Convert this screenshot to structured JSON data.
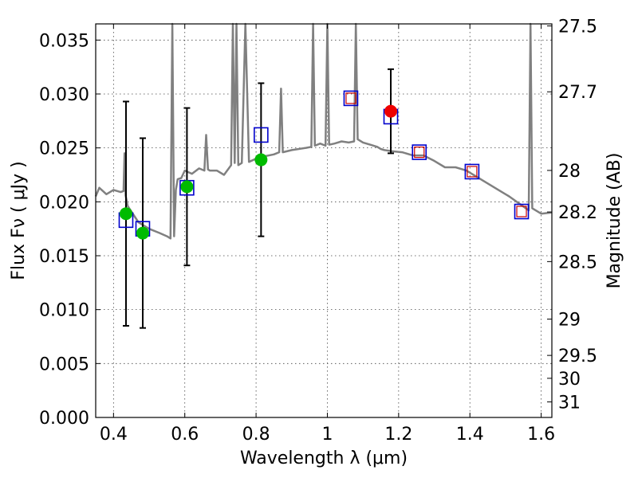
{
  "chart_data": {
    "type": "scatter",
    "xlabel": "Wavelength  λ (μm)",
    "ylabel": "Flux  Fν  ( μJy )",
    "y2label": "Magnitude (AB)",
    "xlim": [
      0.35,
      1.63
    ],
    "ylim": [
      0.0,
      0.0365
    ],
    "grid": true,
    "x_ticks": [
      {
        "value": 0.4,
        "label": "0.4"
      },
      {
        "value": 0.6,
        "label": "0.6"
      },
      {
        "value": 0.8,
        "label": "0.8"
      },
      {
        "value": 1.0,
        "label": "1"
      },
      {
        "value": 1.2,
        "label": "1.2"
      },
      {
        "value": 1.4,
        "label": "1.4"
      },
      {
        "value": 1.6,
        "label": "1.6"
      }
    ],
    "y_ticks": [
      {
        "value": 0.0,
        "label": "0.000"
      },
      {
        "value": 0.005,
        "label": "0.005"
      },
      {
        "value": 0.01,
        "label": "0.010"
      },
      {
        "value": 0.015,
        "label": "0.015"
      },
      {
        "value": 0.02,
        "label": "0.020"
      },
      {
        "value": 0.025,
        "label": "0.025"
      },
      {
        "value": 0.03,
        "label": "0.030"
      },
      {
        "value": 0.035,
        "label": "0.035"
      }
    ],
    "mag_ticks": [
      {
        "mag": 27.5,
        "label": "27.5"
      },
      {
        "mag": 27.7,
        "label": "27.7"
      },
      {
        "mag": 28.0,
        "label": "28"
      },
      {
        "mag": 28.2,
        "label": "28.2"
      },
      {
        "mag": 28.5,
        "label": "28.5"
      },
      {
        "mag": 29.0,
        "label": "29"
      },
      {
        "mag": 29.5,
        "label": "29.5"
      },
      {
        "mag": 30.0,
        "label": "30"
      },
      {
        "mag": 31.0,
        "label": "31"
      }
    ],
    "colors": {
      "spectrum": "#808080",
      "observed": "#00bb00",
      "detection": "#ee0000",
      "model_box": "#0000cc",
      "model_box_inner": "#cc0000",
      "errorbar": "#000000"
    },
    "observed_points": [
      {
        "x": 0.435,
        "y": 0.0189,
        "err_low": 0.0104,
        "err_high": 0.0104
      },
      {
        "x": 0.482,
        "y": 0.0171,
        "err_low": 0.0088,
        "err_high": 0.0088
      },
      {
        "x": 0.606,
        "y": 0.0214,
        "err_low": 0.0073,
        "err_high": 0.0073
      },
      {
        "x": 0.814,
        "y": 0.0239,
        "err_low": 0.0071,
        "err_high": 0.0071
      }
    ],
    "detection_points": [
      {
        "x": 1.178,
        "y": 0.0284,
        "err_low": 0.0039,
        "err_high": 0.0039
      }
    ],
    "model_points": [
      {
        "x": 0.435,
        "y": 0.0183,
        "inner": false
      },
      {
        "x": 0.482,
        "y": 0.0175,
        "inner": false
      },
      {
        "x": 0.606,
        "y": 0.0213,
        "inner": false
      },
      {
        "x": 0.814,
        "y": 0.0262,
        "inner": false
      },
      {
        "x": 1.066,
        "y": 0.0296,
        "inner": true
      },
      {
        "x": 1.178,
        "y": 0.0279,
        "inner": false
      },
      {
        "x": 1.258,
        "y": 0.0246,
        "inner": true
      },
      {
        "x": 1.406,
        "y": 0.0228,
        "inner": true
      },
      {
        "x": 1.545,
        "y": 0.0191,
        "inner": true
      }
    ],
    "spectrum": {
      "x": [
        0.35,
        0.36,
        0.38,
        0.4,
        0.42,
        0.428,
        0.431,
        0.434,
        0.44,
        0.47,
        0.5,
        0.53,
        0.55,
        0.56,
        0.565,
        0.57,
        0.575,
        0.58,
        0.59,
        0.6,
        0.62,
        0.64,
        0.655,
        0.66,
        0.665,
        0.67,
        0.69,
        0.71,
        0.73,
        0.735,
        0.74,
        0.745,
        0.75,
        0.76,
        0.77,
        0.78,
        0.8,
        0.82,
        0.85,
        0.865,
        0.87,
        0.875,
        0.9,
        0.94,
        0.955,
        0.96,
        0.965,
        0.98,
        0.995,
        1.0,
        1.005,
        1.02,
        1.04,
        1.06,
        1.075,
        1.08,
        1.085,
        1.1,
        1.12,
        1.14,
        1.15,
        1.16,
        1.18,
        1.21,
        1.24,
        1.27,
        1.3,
        1.33,
        1.36,
        1.39,
        1.42,
        1.45,
        1.48,
        1.51,
        1.54,
        1.565,
        1.57,
        1.575,
        1.6,
        1.63
      ],
      "y": [
        0.0205,
        0.0213,
        0.0207,
        0.0211,
        0.0209,
        0.021,
        0.0245,
        0.0206,
        0.0196,
        0.0181,
        0.0175,
        0.0171,
        0.0168,
        0.0166,
        0.0365,
        0.0168,
        0.0211,
        0.0221,
        0.0222,
        0.0229,
        0.0226,
        0.0231,
        0.0229,
        0.0262,
        0.023,
        0.0229,
        0.0229,
        0.0225,
        0.0234,
        0.0365,
        0.0236,
        0.0365,
        0.0234,
        0.0236,
        0.0365,
        0.0237,
        0.024,
        0.0242,
        0.0244,
        0.0246,
        0.0305,
        0.0246,
        0.0248,
        0.025,
        0.0251,
        0.0365,
        0.0252,
        0.0254,
        0.0252,
        0.0365,
        0.0253,
        0.0254,
        0.0256,
        0.0255,
        0.0256,
        0.0365,
        0.0258,
        0.0255,
        0.0253,
        0.0251,
        0.0249,
        0.0248,
        0.0247,
        0.0246,
        0.0243,
        0.0243,
        0.0238,
        0.0232,
        0.0232,
        0.0229,
        0.0223,
        0.0217,
        0.0211,
        0.0205,
        0.0198,
        0.0192,
        0.0365,
        0.0194,
        0.0189,
        0.019
      ]
    }
  }
}
